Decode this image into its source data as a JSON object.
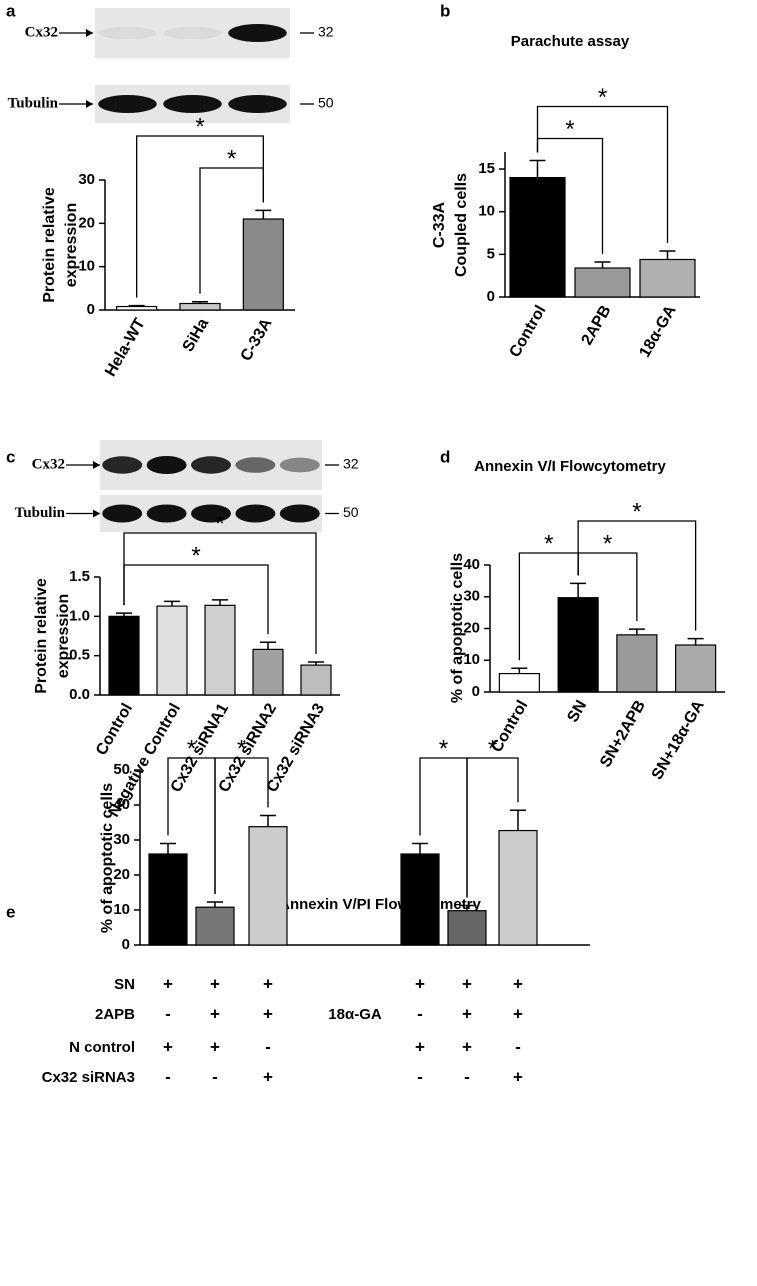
{
  "chart_data": [
    {
      "type": "bar",
      "panel": "a",
      "blot": [
        {
          "label": "Cx32",
          "marker": "32"
        },
        {
          "label": "Tubulin",
          "marker": "50"
        }
      ],
      "ylabel": [
        "Protein relative",
        "expression"
      ],
      "categories": [
        "Hela-WT",
        "SiHa",
        "C-33A"
      ],
      "values": [
        0.8,
        1.5,
        21
      ],
      "errors": [
        0.2,
        0.4,
        2
      ],
      "colors": [
        "#ffffff",
        "#c8c8c8",
        "#8a8a8a"
      ],
      "ylim": [
        0,
        30
      ],
      "yticks": [
        0,
        10,
        20,
        30
      ],
      "annotations": [
        {
          "text": "*",
          "between": [
            0,
            2
          ]
        },
        {
          "text": "*",
          "between": [
            1,
            2
          ]
        }
      ]
    },
    {
      "type": "bar",
      "panel": "b",
      "title": "Parachute assay",
      "ylabel": [
        "C-33A",
        "Coupled cells"
      ],
      "categories": [
        "Control",
        "2APB",
        "18α-GA"
      ],
      "values": [
        14,
        3.4,
        4.4
      ],
      "errors": [
        2,
        0.7,
        1
      ],
      "colors": [
        "#000000",
        "#9a9a9a",
        "#b0b0b0"
      ],
      "ylim": [
        0,
        17
      ],
      "yticks": [
        0,
        5,
        10,
        15
      ],
      "annotations": [
        {
          "text": "*",
          "between": [
            0,
            2
          ]
        },
        {
          "text": "*",
          "between": [
            0,
            1
          ]
        }
      ]
    },
    {
      "type": "bar",
      "panel": "c",
      "blot": [
        {
          "label": "Cx32",
          "marker": "32"
        },
        {
          "label": "Tubulin",
          "marker": "50"
        }
      ],
      "ylabel": [
        "Protein relative",
        "expression"
      ],
      "categories": [
        "Control",
        "Negative Control",
        "Cx32 siRNA1",
        "Cx32 siRNA2",
        "Cx32 siRNA3"
      ],
      "values": [
        1.0,
        1.13,
        1.14,
        0.58,
        0.38
      ],
      "errors": [
        0.04,
        0.06,
        0.07,
        0.09,
        0.04
      ],
      "colors": [
        "#000000",
        "#e0e0e0",
        "#cfcfcf",
        "#a0a0a0",
        "#bdbdbd"
      ],
      "ylim": [
        0,
        1.5
      ],
      "yticks": [
        {
          "value": 0,
          "label": "0.0"
        },
        0.5,
        {
          "value": 1,
          "label": "1.0"
        },
        1.5
      ],
      "annotations": [
        {
          "text": "*",
          "between": [
            0,
            4
          ]
        },
        {
          "text": "*",
          "between": [
            0,
            3
          ]
        }
      ]
    },
    {
      "type": "bar",
      "panel": "d",
      "title": "Annexin V/I Flowcytometry",
      "ylabel": [
        "% of apoptotic cells"
      ],
      "categories": [
        "Control",
        "SN",
        "SN+2APB",
        "SN+18α-GA"
      ],
      "values": [
        5.8,
        29.7,
        18,
        14.8
      ],
      "errors": [
        1.7,
        4.5,
        1.8,
        2
      ],
      "colors": [
        "#ffffff",
        "#000000",
        "#9a9a9a",
        "#aaaaaa"
      ],
      "ylim": [
        0,
        40
      ],
      "yticks": [
        0,
        10,
        20,
        30,
        40
      ],
      "annotations": [
        {
          "text": "*",
          "between": [
            0,
            1
          ]
        },
        {
          "text": "*",
          "between": [
            1,
            3
          ]
        },
        {
          "text": "*",
          "between": [
            1,
            2
          ]
        }
      ]
    },
    {
      "type": "bar",
      "panel": "e",
      "title": "Annexin V/PI Flowcytometry",
      "ylabel": [
        "% of apoptotic cells"
      ],
      "values": [
        26,
        10.8,
        33.8,
        26,
        9.8,
        32.7
      ],
      "errors": [
        3,
        1.5,
        3.2,
        3,
        1.5,
        5.8
      ],
      "colors": [
        "#000000",
        "#777777",
        "#cccccc",
        "#000000",
        "#666666",
        "#cccccc"
      ],
      "ylim": [
        0,
        50
      ],
      "yticks": [
        0,
        10,
        20,
        30,
        40,
        50
      ],
      "annotations": [
        {
          "text": "*",
          "between": [
            0,
            1
          ]
        },
        {
          "text": "*",
          "between": [
            1,
            2
          ]
        },
        {
          "text": "*",
          "between": [
            3,
            4
          ]
        },
        {
          "text": "*",
          "between": [
            4,
            5
          ]
        }
      ],
      "conditions": [
        {
          "label": "SN",
          "marks": [
            "+",
            "+",
            "+",
            "+",
            "+",
            "+"
          ]
        },
        {
          "label": "2APB",
          "middle_label": "18α-GA",
          "marks": [
            "-",
            "+",
            "+",
            "-",
            "+",
            "+"
          ]
        },
        {
          "label": "N control",
          "marks": [
            "+",
            "+",
            "-",
            "+",
            "+",
            "-"
          ]
        },
        {
          "label": "Cx32 siRNA3",
          "marks": [
            "-",
            "-",
            "+",
            "-",
            "-",
            "+"
          ]
        }
      ]
    }
  ]
}
